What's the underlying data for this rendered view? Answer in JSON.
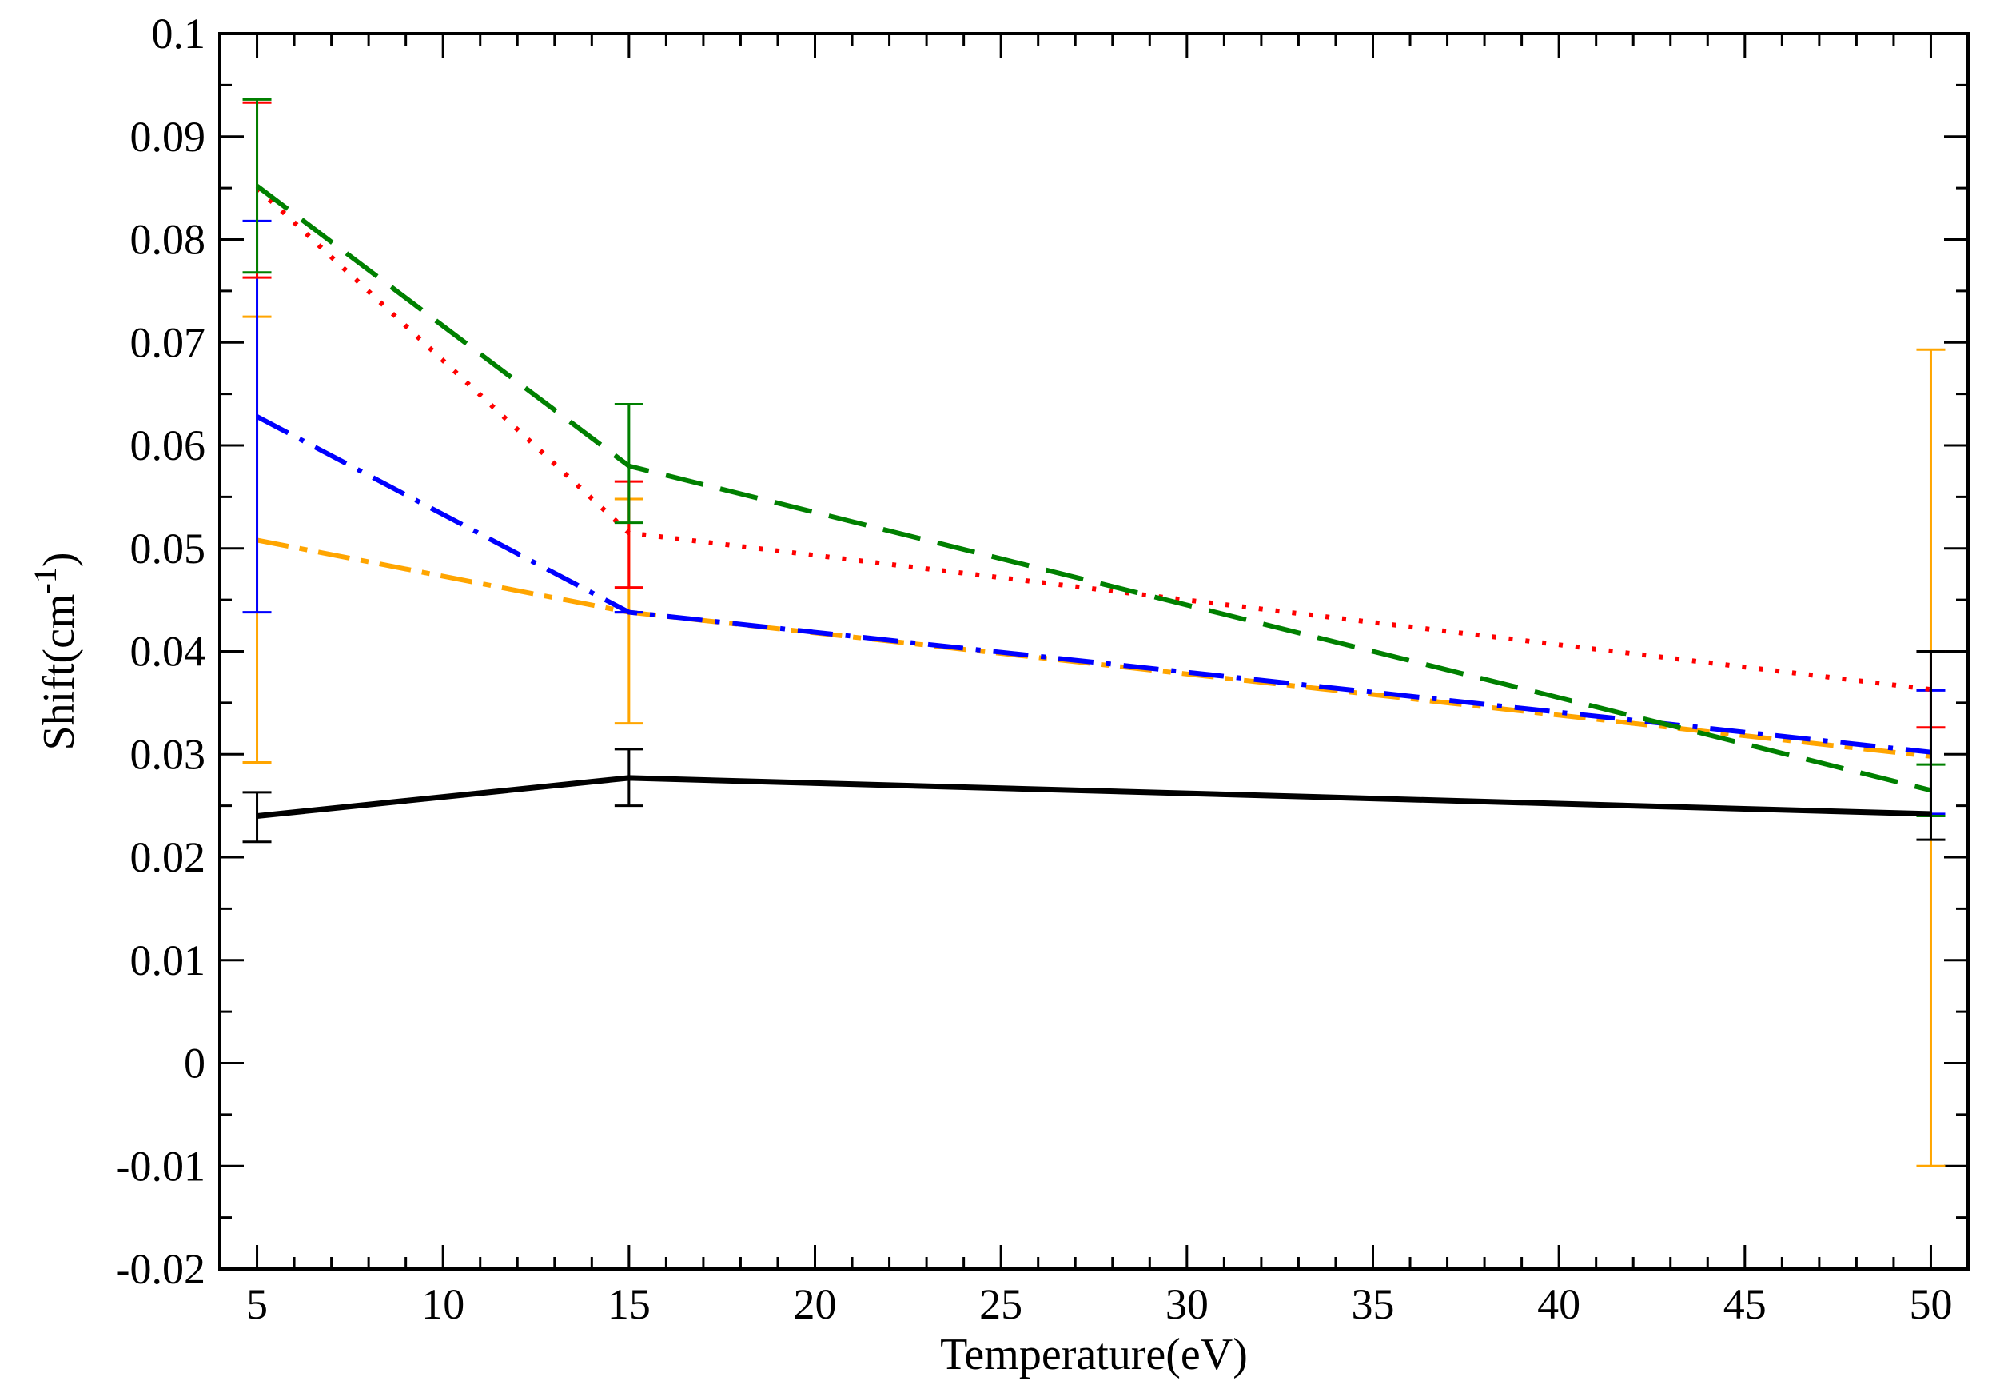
{
  "chart_data": {
    "type": "line",
    "xlabel": "Temperature(eV)",
    "ylabel": {
      "prefix": "Shift(cm",
      "superscript": "-1",
      "suffix": ")"
    },
    "xlim": [
      4,
      51
    ],
    "ylim": [
      -0.02,
      0.1
    ],
    "x_ticks": [
      5,
      10,
      15,
      20,
      25,
      30,
      35,
      40,
      45,
      50
    ],
    "x_tick_labels": [
      "5",
      "10",
      "15",
      "20",
      "25",
      "30",
      "35",
      "40",
      "45",
      "50"
    ],
    "y_ticks": [
      -0.02,
      -0.01,
      0,
      0.01,
      0.02,
      0.03,
      0.04,
      0.05,
      0.06,
      0.07,
      0.08,
      0.09,
      0.1
    ],
    "y_tick_labels": [
      "-0.02",
      "-0.01",
      "0",
      "0.01",
      "0.02",
      "0.03",
      "0.04",
      "0.05",
      "0.06",
      "0.07",
      "0.08",
      "0.09",
      "0.1"
    ],
    "grid": false,
    "x": [
      5,
      15,
      50
    ],
    "series": [
      {
        "color": "#000000",
        "style": "solid",
        "values": [
          0.024,
          0.0277,
          0.0242
        ],
        "err_low": [
          0.0215,
          0.025,
          0.0217
        ],
        "err_high": [
          0.0263,
          0.0305,
          0.04
        ]
      },
      {
        "color": "#ff0000",
        "style": "dotted",
        "values": [
          0.085,
          0.0515,
          0.0363
        ],
        "err_low": [
          0.0763,
          0.0462,
          0.0326
        ],
        "err_high": [
          0.0933,
          0.0565,
          0.04
        ]
      },
      {
        "color": "#0000ff",
        "style": "dashdot",
        "values": [
          0.0628,
          0.0438,
          0.0302
        ],
        "err_low": [
          0.0438,
          0.0438,
          0.0242
        ],
        "err_high": [
          0.0818,
          0.0438,
          0.0362
        ]
      },
      {
        "color": "#008000",
        "style": "dashed",
        "values": [
          0.0852,
          0.058,
          0.0265
        ],
        "err_low": [
          0.0768,
          0.0525,
          0.024
        ],
        "err_high": [
          0.0936,
          0.064,
          0.029
        ]
      },
      {
        "color": "#ffa500",
        "style": "dashdot-long",
        "values": [
          0.0508,
          0.0438,
          0.0298
        ],
        "err_low": [
          0.0292,
          0.033,
          -0.01
        ],
        "err_high": [
          0.0725,
          0.0548,
          0.0693
        ]
      }
    ]
  }
}
